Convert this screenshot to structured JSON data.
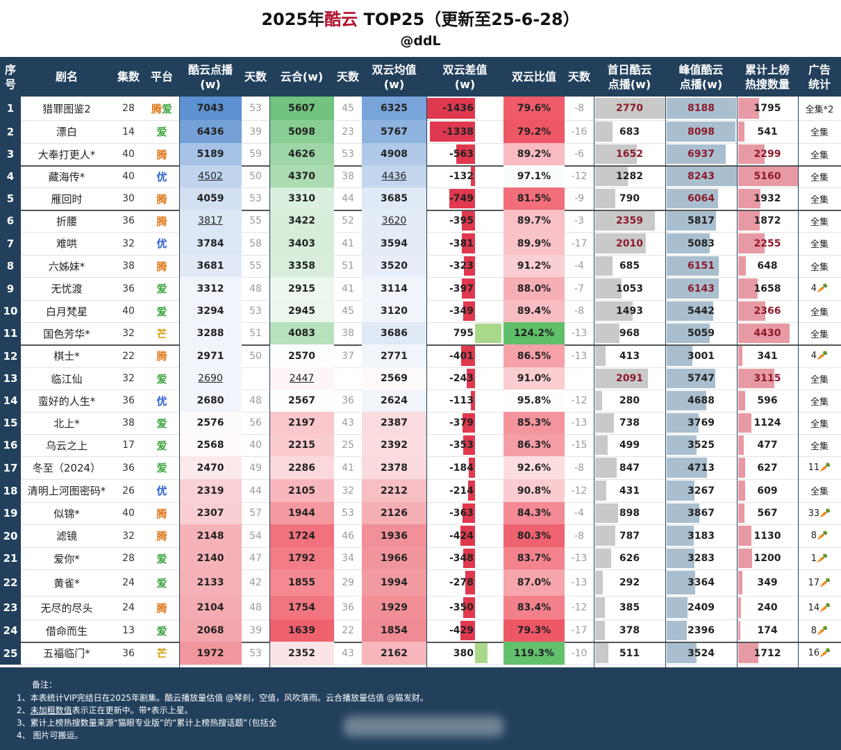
{
  "title": {
    "prefix": "2025年",
    "highlight": "酷云",
    "suffix": " TOP25（更新至25-6-28）",
    "author": "@ddL"
  },
  "headers": [
    "序号",
    "剧名",
    "集数",
    "平台",
    "酷云点播\n(w)",
    "天数",
    "云合(w)",
    "天数",
    "双云均值\n(w)",
    "双云差值\n(w)",
    "双云比值",
    "天数",
    "首日酷云\n点播(w)",
    "峰值酷云\n点播(w)",
    "累计上榜\n热搜数量",
    "广告\n统计"
  ],
  "colors": {
    "header_bg": "#22405c",
    "tencent": "#e0781c",
    "iqiyi": "#3fa541",
    "youku": "#2b5fd0",
    "mango": "#d4a010"
  },
  "rows": [
    {
      "no": "1",
      "name": "猎罪图鉴2",
      "eps": "28",
      "plat": "腾爱",
      "kuyun": "7043",
      "kd": "53",
      "yunhe": "5607",
      "yd": "45",
      "avg": "6325",
      "diff": "-1436",
      "ratio": "79.6%",
      "rd": "-8",
      "first": "2770",
      "peak": "8188",
      "hot": "1795",
      "ad": "全集*2"
    },
    {
      "no": "2",
      "name": "漂白",
      "eps": "14",
      "plat": "爱",
      "kuyun": "6436",
      "kd": "39",
      "yunhe": "5098",
      "yd": "23",
      "avg": "5767",
      "diff": "-1338",
      "ratio": "79.2%",
      "rd": "-16",
      "first": "683",
      "peak": "8098",
      "hot": "541",
      "ad": "全集"
    },
    {
      "no": "3",
      "name": "大奉打更人*",
      "eps": "40",
      "plat": "腾",
      "kuyun": "5189",
      "kd": "59",
      "yunhe": "4626",
      "yd": "53",
      "avg": "4908",
      "diff": "-563",
      "ratio": "89.2%",
      "rd": "-6",
      "first": "1652",
      "peak": "6937",
      "hot": "2299",
      "ad": "全集"
    },
    {
      "no": "4",
      "name": "藏海传*",
      "eps": "40",
      "plat": "优",
      "kuyun": "4502",
      "kd": "50",
      "yunhe": "4370",
      "yd": "38",
      "avg": "4436",
      "diff": "-132",
      "ratio": "97.1%",
      "rd": "-12",
      "first": "1282",
      "peak": "8243",
      "hot": "5160",
      "ad": "全集"
    },
    {
      "no": "5",
      "name": "雁回时",
      "eps": "30",
      "plat": "腾",
      "kuyun": "4059",
      "kd": "53",
      "yunhe": "3310",
      "yd": "44",
      "avg": "3685",
      "diff": "-749",
      "ratio": "81.5%",
      "rd": "-9",
      "first": "790",
      "peak": "6064",
      "hot": "1932",
      "ad": "全集"
    },
    {
      "no": "6",
      "name": "折腰",
      "eps": "36",
      "plat": "腾",
      "kuyun": "3817",
      "kd": "55",
      "yunhe": "3422",
      "yd": "52",
      "avg": "3620",
      "diff": "-395",
      "ratio": "89.7%",
      "rd": "-3",
      "first": "2359",
      "peak": "5817",
      "hot": "1872",
      "ad": "全集"
    },
    {
      "no": "7",
      "name": "难哄",
      "eps": "32",
      "plat": "优",
      "kuyun": "3784",
      "kd": "58",
      "yunhe": "3403",
      "yd": "41",
      "avg": "3594",
      "diff": "-381",
      "ratio": "89.9%",
      "rd": "-17",
      "first": "2010",
      "peak": "5083",
      "hot": "2255",
      "ad": "全集"
    },
    {
      "no": "8",
      "name": "六姊妹*",
      "eps": "38",
      "plat": "腾",
      "kuyun": "3681",
      "kd": "55",
      "yunhe": "3358",
      "yd": "51",
      "avg": "3520",
      "diff": "-323",
      "ratio": "91.2%",
      "rd": "-4",
      "first": "685",
      "peak": "6151",
      "hot": "648",
      "ad": "全集"
    },
    {
      "no": "9",
      "name": "无忧渡",
      "eps": "36",
      "plat": "爱",
      "kuyun": "3312",
      "kd": "48",
      "yunhe": "2915",
      "yd": "41",
      "avg": "3114",
      "diff": "-397",
      "ratio": "88.0%",
      "rd": "-7",
      "first": "1053",
      "peak": "6143",
      "hot": "1658",
      "ad": "4🥕"
    },
    {
      "no": "10",
      "name": "白月梵星",
      "eps": "40",
      "plat": "爱",
      "kuyun": "3294",
      "kd": "53",
      "yunhe": "2945",
      "yd": "45",
      "avg": "3120",
      "diff": "-349",
      "ratio": "89.4%",
      "rd": "-8",
      "first": "1493",
      "peak": "5442",
      "hot": "2366",
      "ad": "全集"
    },
    {
      "no": "11",
      "name": "国色芳华*",
      "eps": "32",
      "plat": "芒",
      "kuyun": "3288",
      "kd": "51",
      "yunhe": "4083",
      "yd": "38",
      "avg": "3686",
      "diff": "795",
      "ratio": "124.2%",
      "rd": "-13",
      "first": "968",
      "peak": "5059",
      "hot": "4430",
      "ad": "全集"
    },
    {
      "no": "12",
      "name": "棋士*",
      "eps": "22",
      "plat": "腾",
      "kuyun": "2971",
      "kd": "50",
      "yunhe": "2570",
      "yd": "37",
      "avg": "2771",
      "diff": "-401",
      "ratio": "86.5%",
      "rd": "-13",
      "first": "413",
      "peak": "3001",
      "hot": "341",
      "ad": "4🥕"
    },
    {
      "no": "13",
      "name": "临江仙",
      "eps": "32",
      "plat": "爱",
      "kuyun": "2690",
      "kd": "",
      "yunhe": "2447",
      "yd": "",
      "avg": "2569",
      "diff": "-243",
      "ratio": "91.0%",
      "rd": "",
      "first": "2091",
      "peak": "5747",
      "hot": "3115",
      "ad": "全集"
    },
    {
      "no": "14",
      "name": "蛮好的人生*",
      "eps": "36",
      "plat": "优",
      "kuyun": "2680",
      "kd": "48",
      "yunhe": "2567",
      "yd": "36",
      "avg": "2624",
      "diff": "-113",
      "ratio": "95.8%",
      "rd": "-12",
      "first": "280",
      "peak": "4688",
      "hot": "596",
      "ad": "全集"
    },
    {
      "no": "15",
      "name": "北上*",
      "eps": "38",
      "plat": "爱",
      "kuyun": "2576",
      "kd": "56",
      "yunhe": "2197",
      "yd": "43",
      "avg": "2387",
      "diff": "-379",
      "ratio": "85.3%",
      "rd": "-13",
      "first": "738",
      "peak": "3769",
      "hot": "1124",
      "ad": "全集"
    },
    {
      "no": "16",
      "name": "乌云之上",
      "eps": "17",
      "plat": "爱",
      "kuyun": "2568",
      "kd": "40",
      "yunhe": "2215",
      "yd": "25",
      "avg": "2392",
      "diff": "-353",
      "ratio": "86.3%",
      "rd": "-15",
      "first": "499",
      "peak": "3525",
      "hot": "477",
      "ad": "全集"
    },
    {
      "no": "17",
      "name": "冬至（2024）",
      "eps": "36",
      "plat": "爱",
      "kuyun": "2470",
      "kd": "49",
      "yunhe": "2286",
      "yd": "41",
      "avg": "2378",
      "diff": "-184",
      "ratio": "92.6%",
      "rd": "-8",
      "first": "847",
      "peak": "4713",
      "hot": "627",
      "ad": "11🥕"
    },
    {
      "no": "18",
      "name": "清明上河图密码*",
      "eps": "26",
      "plat": "优",
      "kuyun": "2319",
      "kd": "44",
      "yunhe": "2105",
      "yd": "32",
      "avg": "2212",
      "diff": "-214",
      "ratio": "90.8%",
      "rd": "-12",
      "first": "431",
      "peak": "3267",
      "hot": "609",
      "ad": "全集"
    },
    {
      "no": "19",
      "name": "似锦*",
      "eps": "40",
      "plat": "腾",
      "kuyun": "2307",
      "kd": "57",
      "yunhe": "1944",
      "yd": "53",
      "avg": "2126",
      "diff": "-363",
      "ratio": "84.3%",
      "rd": "-4",
      "first": "898",
      "peak": "3867",
      "hot": "567",
      "ad": "33🥕"
    },
    {
      "no": "20",
      "name": "滤镜",
      "eps": "32",
      "plat": "腾",
      "kuyun": "2148",
      "kd": "54",
      "yunhe": "1724",
      "yd": "46",
      "avg": "1936",
      "diff": "-424",
      "ratio": "80.3%",
      "rd": "-8",
      "first": "787",
      "peak": "3183",
      "hot": "1130",
      "ad": "8🥕"
    },
    {
      "no": "21",
      "name": "爱你*",
      "eps": "28",
      "plat": "爱",
      "kuyun": "2140",
      "kd": "47",
      "yunhe": "1792",
      "yd": "34",
      "avg": "1966",
      "diff": "-348",
      "ratio": "83.7%",
      "rd": "-13",
      "first": "626",
      "peak": "3283",
      "hot": "1200",
      "ad": "1🥕"
    },
    {
      "no": "22",
      "name": "黄雀*",
      "eps": "24",
      "plat": "爱",
      "kuyun": "2133",
      "kd": "42",
      "yunhe": "1855",
      "yd": "29",
      "avg": "1994",
      "diff": "-278",
      "ratio": "87.0%",
      "rd": "-13",
      "first": "292",
      "peak": "3364",
      "hot": "349",
      "ad": "17🥕"
    },
    {
      "no": "23",
      "name": "无尽的尽头",
      "eps": "24",
      "plat": "腾",
      "kuyun": "2104",
      "kd": "48",
      "yunhe": "1754",
      "yd": "36",
      "avg": "1929",
      "diff": "-350",
      "ratio": "83.4%",
      "rd": "-12",
      "first": "385",
      "peak": "2409",
      "hot": "240",
      "ad": "14🥕"
    },
    {
      "no": "24",
      "name": "借命而生",
      "eps": "13",
      "plat": "爱",
      "kuyun": "2068",
      "kd": "39",
      "yunhe": "1639",
      "yd": "22",
      "avg": "1854",
      "diff": "-429",
      "ratio": "79.3%",
      "rd": "-17",
      "first": "378",
      "peak": "2396",
      "hot": "174",
      "ad": "8🥕"
    },
    {
      "no": "25",
      "name": "五福临门*",
      "eps": "36",
      "plat": "芒",
      "kuyun": "1972",
      "kd": "53",
      "yunhe": "2352",
      "yd": "43",
      "avg": "2162",
      "diff": "380",
      "ratio": "119.3%",
      "rd": "-10",
      "first": "511",
      "peak": "3524",
      "hot": "1712",
      "ad": "16🥕"
    }
  ],
  "notes": {
    "title": "备注：",
    "n1": "1、本表统计VIP完结日在2025年剧集。酷云播放量估值 @琴刹，空值，风吹落雨。云合播放量估值 @猫发财。",
    "n2a": "2、",
    "n2b": "未加粗数值",
    "n2c": "表示正在更新中。带*表示上星。",
    "n3": "3、累计上榜热搜数量来源“猫眼专业版”的“累计上榜热搜话题”（包括全",
    "n4": "4、 图片可搬运。"
  }
}
